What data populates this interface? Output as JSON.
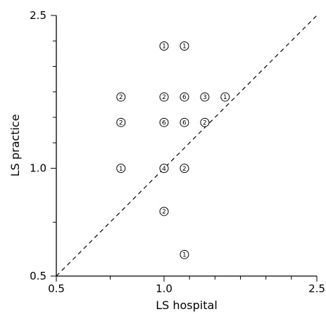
{
  "chart_data": {
    "type": "scatter",
    "xlabel": "LS hospital",
    "ylabel": "LS practice",
    "xlim": [
      0.5,
      2.5
    ],
    "ylim": [
      0.5,
      2.5
    ],
    "x_ticks": [
      {
        "value": 0.5,
        "label": "0.5"
      },
      {
        "value": 1.0,
        "label": "1.0"
      },
      {
        "value": 2.5,
        "label": "2.5"
      }
    ],
    "y_ticks": [
      {
        "value": 0.5,
        "label": "0.5"
      },
      {
        "value": 1.0,
        "label": "1.0"
      },
      {
        "value": 2.5,
        "label": "2.5"
      }
    ],
    "minor_ticks": [
      0.75,
      1.25,
      1.5,
      1.75,
      2.0,
      2.25
    ],
    "reference_line": {
      "style": "dashed",
      "from": [
        0.5,
        0.5
      ],
      "to": [
        2.5,
        2.5
      ]
    },
    "grid": false,
    "points": [
      {
        "x": 1.0,
        "y": 2.2,
        "count": "1"
      },
      {
        "x": 1.2,
        "y": 2.2,
        "count": "1"
      },
      {
        "x": 0.8,
        "y": 1.7,
        "count": "2"
      },
      {
        "x": 1.0,
        "y": 1.7,
        "count": "2"
      },
      {
        "x": 1.2,
        "y": 1.7,
        "count": "6"
      },
      {
        "x": 1.4,
        "y": 1.7,
        "count": "3"
      },
      {
        "x": 1.6,
        "y": 1.7,
        "count": "1"
      },
      {
        "x": 0.8,
        "y": 1.45,
        "count": "2"
      },
      {
        "x": 1.0,
        "y": 1.45,
        "count": "6"
      },
      {
        "x": 1.2,
        "y": 1.45,
        "count": "6"
      },
      {
        "x": 1.4,
        "y": 1.45,
        "count": "2"
      },
      {
        "x": 0.8,
        "y": 1.0,
        "count": "1"
      },
      {
        "x": 1.0,
        "y": 1.0,
        "count": "4"
      },
      {
        "x": 1.2,
        "y": 1.0,
        "count": "2"
      },
      {
        "x": 1.0,
        "y": 0.8,
        "count": "2"
      },
      {
        "x": 1.2,
        "y": 0.6,
        "count": "1"
      }
    ]
  }
}
